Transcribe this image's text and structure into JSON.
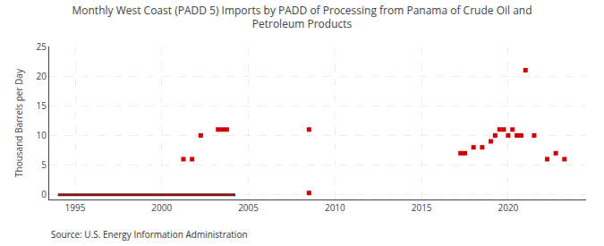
{
  "chart_data": {
    "type": "scatter",
    "title": "Monthly West Coast (PADD 5) Imports by PADD of Processing from Panama of Crude Oil and\nPetroleum Products",
    "ylabel": "Thousand Barrels per Day",
    "annotations": [
      "Source: U.S. Energy Information Administration"
    ],
    "series": [
      {
        "type": "line",
        "line_style": "solid",
        "color": "#7a1a1a",
        "x": [
          1994.0,
          2004.25
        ],
        "values": [
          0,
          0
        ]
      },
      {
        "type": "scatter",
        "marker": "square",
        "color": "#cc0000",
        "x": [
          2008.5
        ],
        "values": [
          0.3
        ]
      },
      {
        "type": "scatter",
        "marker": "square",
        "color": "#cc0000",
        "x": [
          2001.25,
          2001.75,
          2002.25,
          2003.25,
          2003.5,
          2003.75,
          2008.5,
          2017.25,
          2017.5,
          2018.0,
          2018.5,
          2019.0,
          2019.25,
          2019.5,
          2019.75,
          2020.0,
          2020.25,
          2020.5,
          2020.75,
          2021.0,
          2021.5,
          2022.25,
          2022.75,
          2023.25
        ],
        "values": [
          6,
          6,
          10,
          11,
          11,
          11,
          11,
          7,
          7,
          8,
          8,
          9,
          10,
          11,
          11,
          10,
          11,
          10,
          10,
          21,
          10,
          6,
          7,
          6
        ]
      }
    ],
    "xlim": [
      1993.5,
      2024.5
    ],
    "xticks": [
      1995,
      2000,
      2005,
      2010,
      2015,
      2020
    ],
    "ylim": [
      -0.8,
      25
    ],
    "yticks": [
      0,
      5,
      10,
      15,
      20,
      25
    ],
    "grid": true
  }
}
